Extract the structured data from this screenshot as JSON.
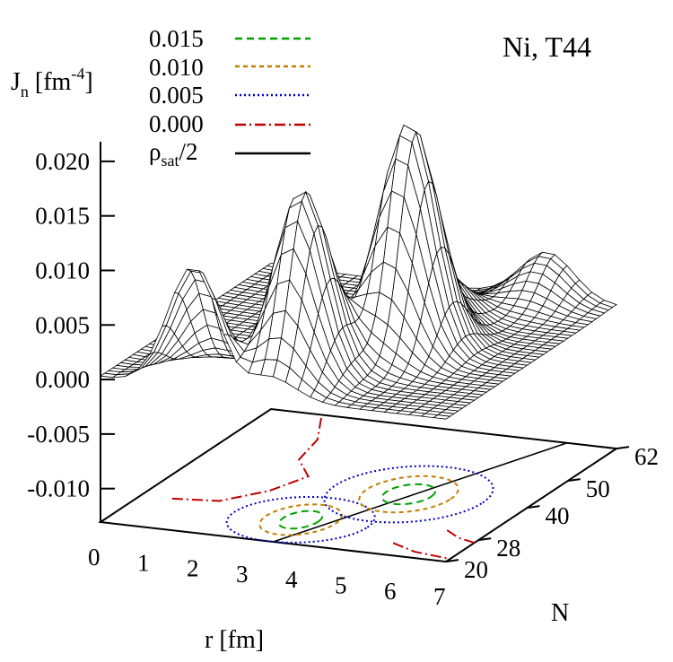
{
  "chart_data": {
    "type": "surface",
    "title": "Ni, T44",
    "zlabel": {
      "main": "J",
      "sub": "n",
      "unit": "[fm",
      "exp": "-4",
      "close": "]"
    },
    "xlabel": "r [fm]",
    "ylabel": "N",
    "zlim": [
      -0.013,
      0.02
    ],
    "z_ticks": [
      "0.020",
      "0.015",
      "0.010",
      "0.005",
      "0.000",
      "-0.005",
      "-0.010"
    ],
    "x_ticks": [
      "0",
      "1",
      "2",
      "3",
      "4",
      "5",
      "6",
      "7"
    ],
    "y_ticks": [
      "20",
      "28",
      "40",
      "50",
      "62"
    ],
    "legend": [
      {
        "label": "0.015",
        "color": "#00a000",
        "dash": "8,5"
      },
      {
        "label": "0.010",
        "color": "#c08000",
        "dash": "5,4"
      },
      {
        "label": "0.005",
        "color": "#0000c8",
        "dash": "2,3"
      },
      {
        "label": "0.000",
        "color": "#c00000",
        "dash": "12,4,2,4"
      },
      {
        "label_main": "ρ",
        "label_sub": "sat",
        "label_tail": "/2",
        "color": "#000000",
        "dash": ""
      }
    ],
    "peaks": [
      {
        "r": 1.9,
        "N": 20,
        "z": 0.0115
      },
      {
        "r": 3.4,
        "N": 28,
        "z": 0.0174
      },
      {
        "r": 4.6,
        "N": 40,
        "z": 0.0208
      },
      {
        "r": 4.3,
        "N": 50,
        "z": 0.0048
      },
      {
        "r": 5.6,
        "N": 62,
        "z": 0.0042
      }
    ]
  }
}
